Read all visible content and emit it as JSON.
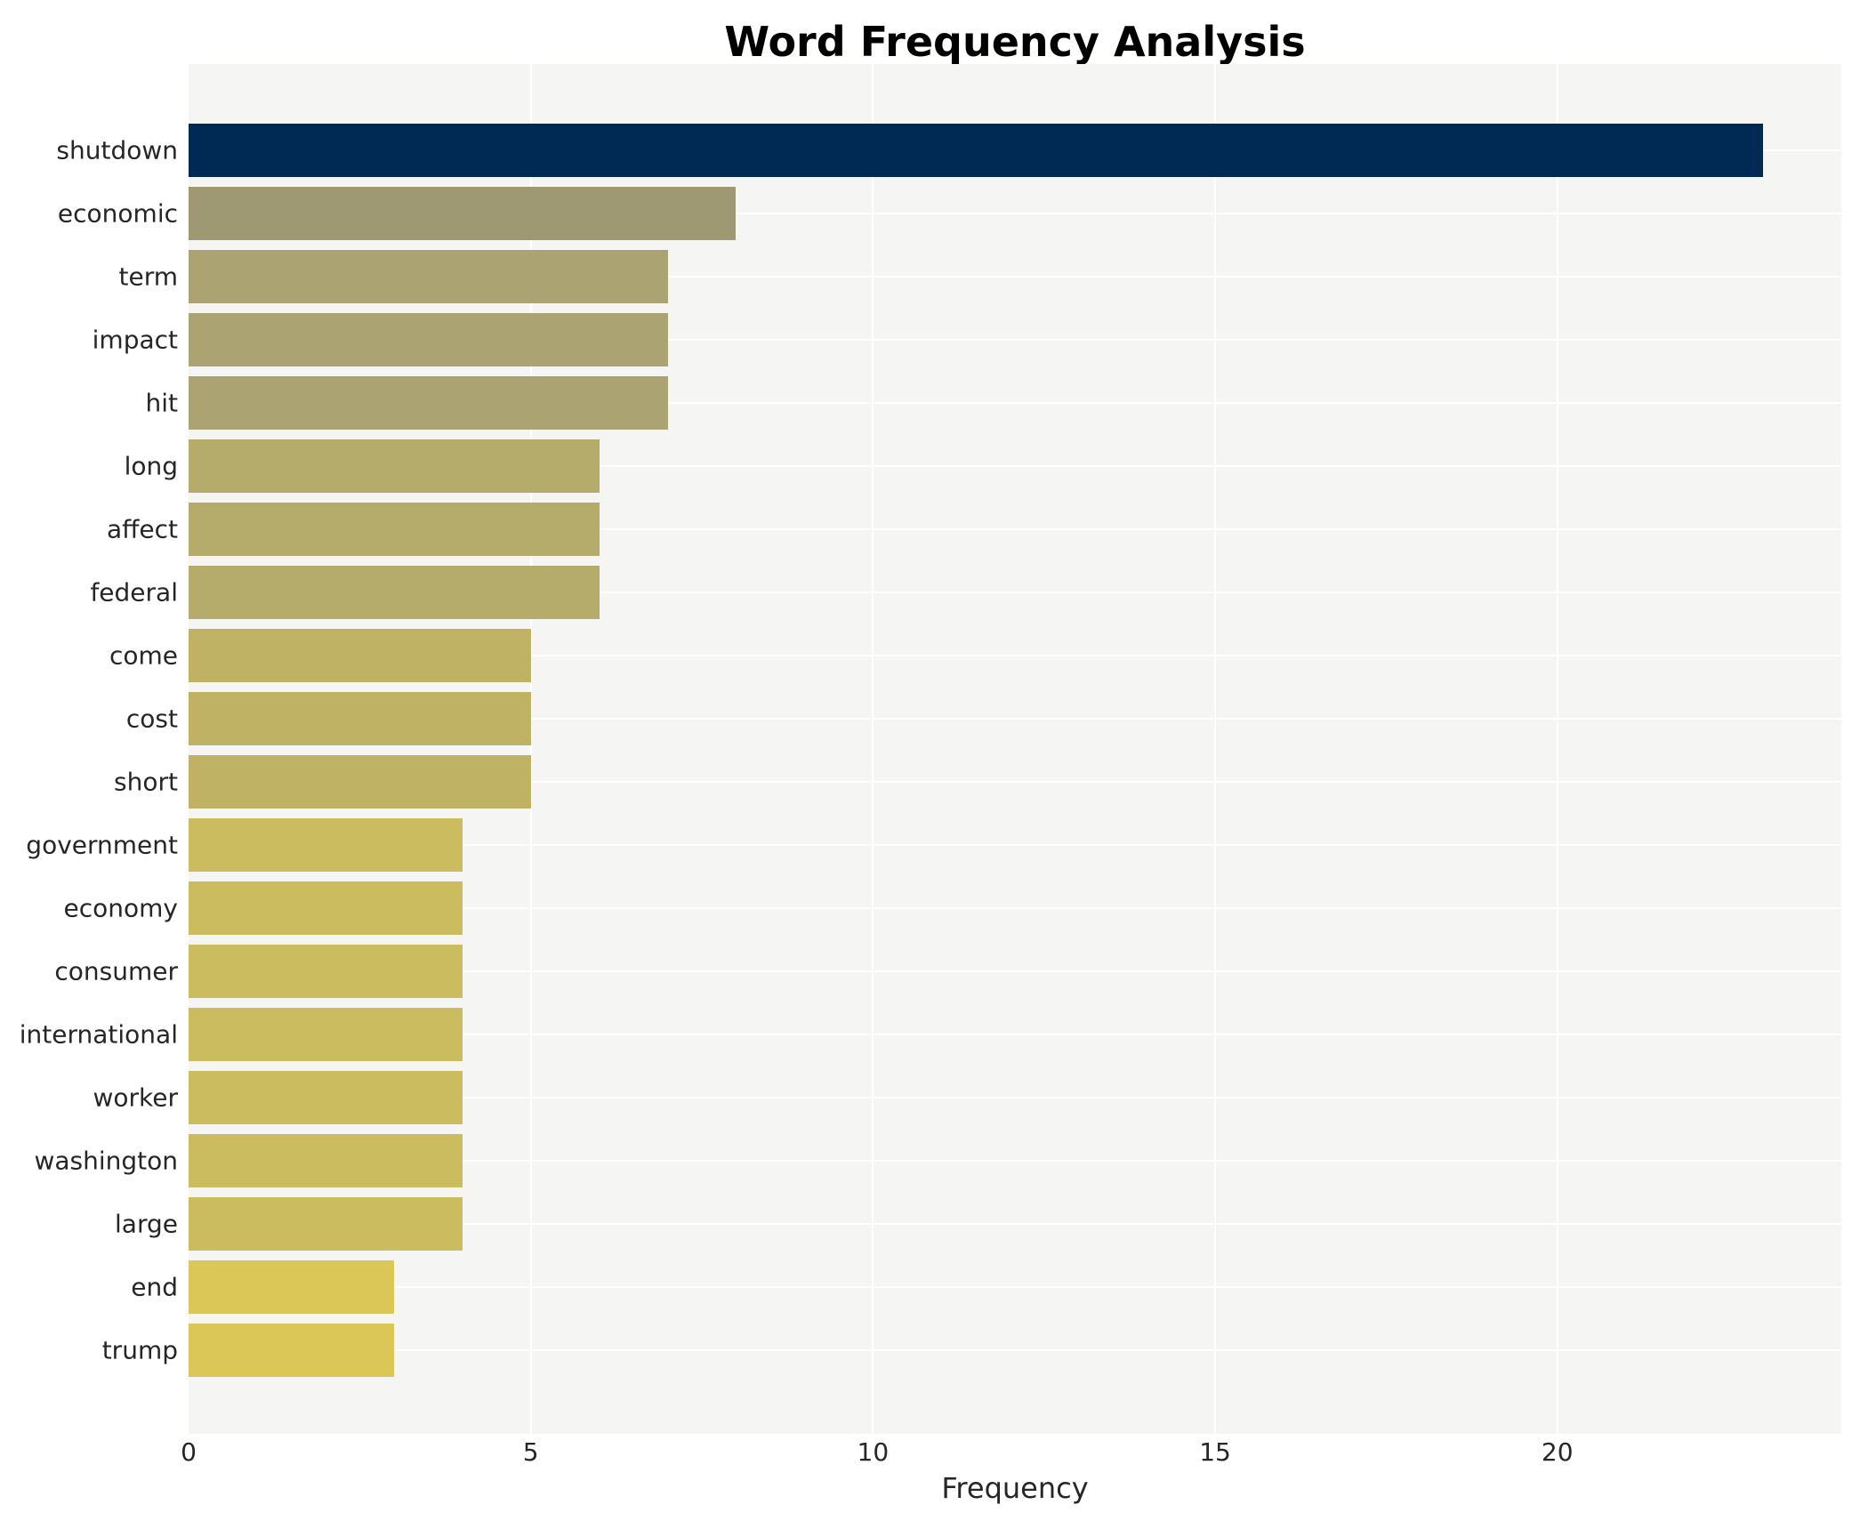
{
  "chart_data": {
    "type": "bar",
    "orientation": "horizontal",
    "title": "Word Frequency Analysis",
    "xlabel": "Frequency",
    "ylabel": "",
    "categories": [
      "shutdown",
      "economic",
      "term",
      "impact",
      "hit",
      "long",
      "affect",
      "federal",
      "come",
      "cost",
      "short",
      "government",
      "economy",
      "consumer",
      "international",
      "worker",
      "washington",
      "large",
      "end",
      "trump"
    ],
    "values": [
      23,
      8,
      7,
      7,
      7,
      6,
      6,
      6,
      5,
      5,
      5,
      4,
      4,
      4,
      4,
      4,
      4,
      4,
      3,
      3
    ],
    "bar_colors": [
      "#002a54",
      "#9e9873",
      "#aba372",
      "#aba372",
      "#aba372",
      "#b5ab6a",
      "#b5ab6a",
      "#b5ab6a",
      "#c0b264",
      "#c0b264",
      "#c0b264",
      "#ccbc60",
      "#ccbc60",
      "#ccbc60",
      "#ccbc60",
      "#ccbc60",
      "#ccbc60",
      "#ccbc60",
      "#dbc757",
      "#dbc757"
    ],
    "x_ticks": [
      "0",
      "5",
      "10",
      "15",
      "20"
    ],
    "x_tick_values": [
      0,
      5,
      10,
      15,
      20
    ],
    "xlim": [
      0,
      24.15
    ],
    "grid": true,
    "grid_color": "#ffffff",
    "plot_background": "#f5f5f3",
    "legend": false
  }
}
